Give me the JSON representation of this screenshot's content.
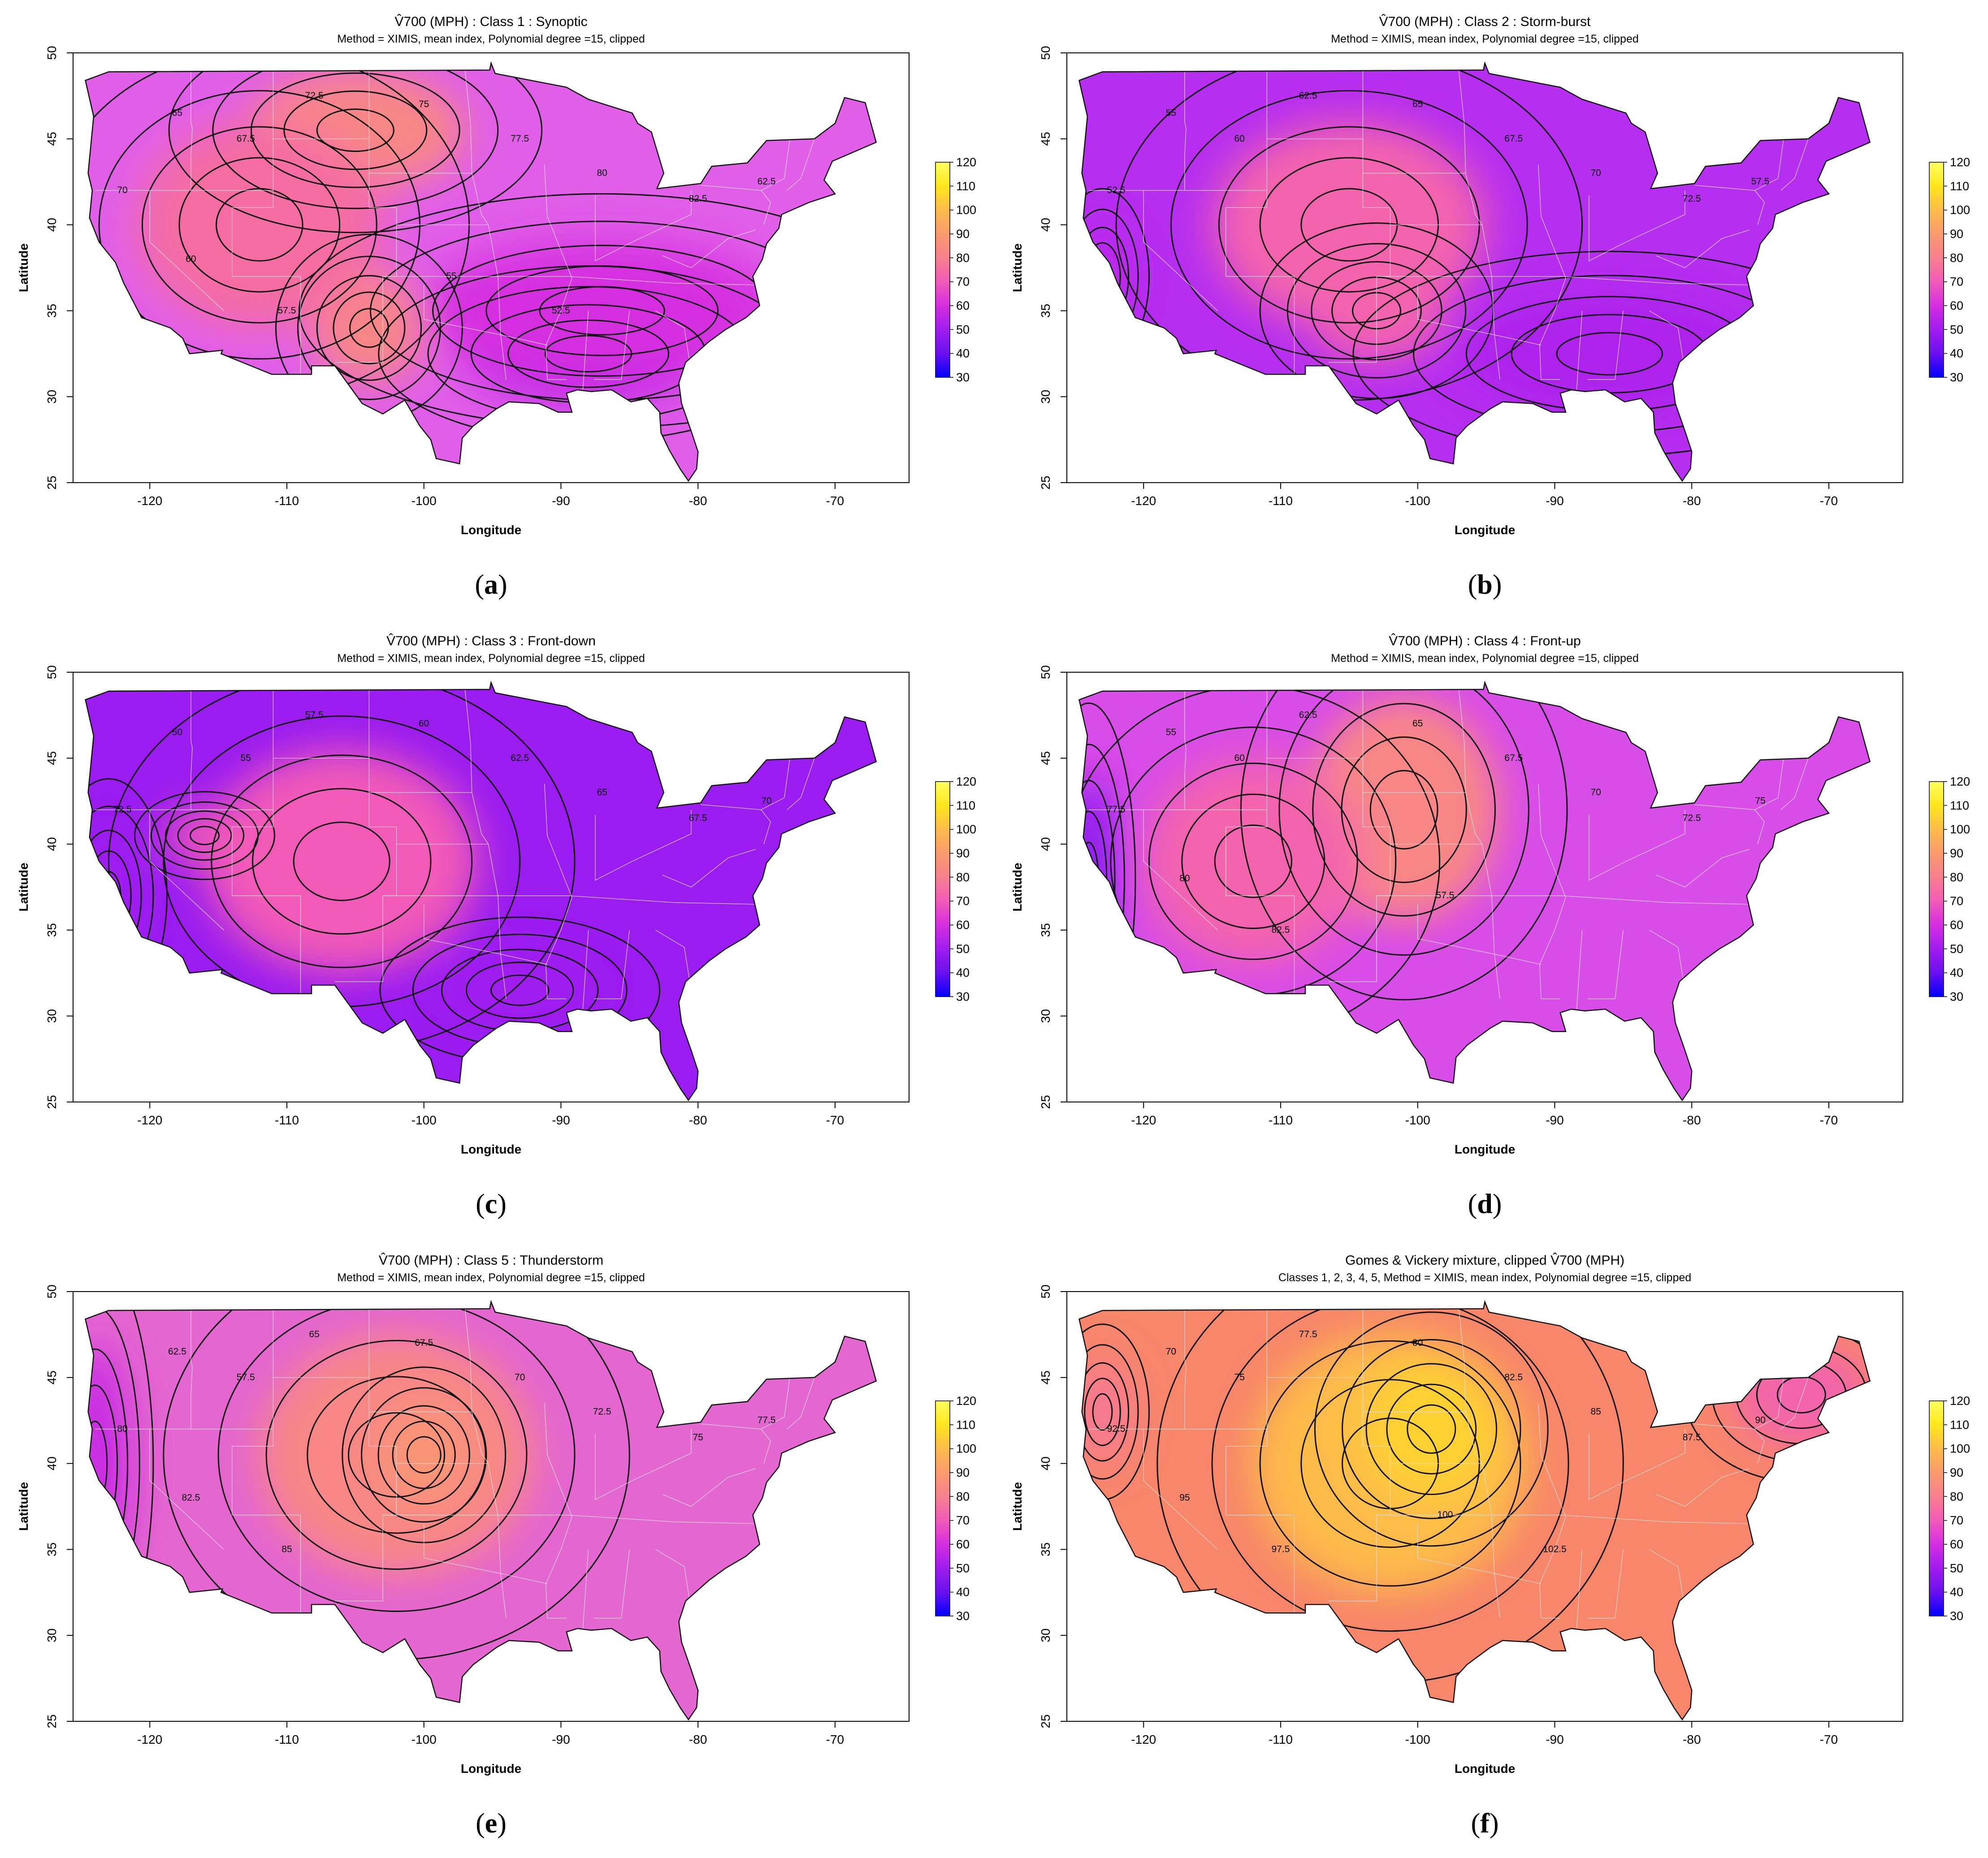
{
  "colorbar": {
    "ticks": [
      "120",
      "110",
      "100",
      "90",
      "80",
      "70",
      "60",
      "50",
      "40",
      "30"
    ],
    "range": [
      30,
      120
    ],
    "stops": [
      "#0000ff",
      "#6a10f0",
      "#a01cf0",
      "#d52ee0",
      "#f25ab8",
      "#f7808e",
      "#fa9a6e",
      "#fdbc4a",
      "#ffe61c",
      "#ffff60"
    ]
  },
  "axis": {
    "xlabel": "Longitude",
    "ylabel": "Latitude",
    "x_ticks": [
      "-120",
      "-110",
      "-100",
      "-90",
      "-80",
      "-70"
    ],
    "y_ticks": [
      "25",
      "30",
      "35",
      "40",
      "45",
      "50"
    ],
    "xlim": [
      -125.6,
      -64.6
    ],
    "ylim": [
      25,
      50
    ]
  },
  "chart_data": [
    {
      "type": "heatmap",
      "panel_label": "a",
      "title": "V̂700 (MPH) : Class 1 : Synoptic",
      "subtitle": "Method = XIMIS, mean index, Polynomial degree =15, clipped",
      "contour_labels": [
        "65",
        "67.5",
        "72.5",
        "75",
        "77.5",
        "80",
        "82.5",
        "62.5",
        "70",
        "60",
        "57.5",
        "55",
        "52.5"
      ],
      "fill_base": "#e05ee8",
      "regions": [
        {
          "x": -105,
          "y": 45.5,
          "rx": 8,
          "ry": 3.5,
          "value": 82.5
        },
        {
          "x": -104,
          "y": 34,
          "rx": 4,
          "ry": 3.2,
          "value": 82.5
        },
        {
          "x": -112,
          "y": 40,
          "rx": 9,
          "ry": 6,
          "value": 75
        },
        {
          "x": -88,
          "y": 32.5,
          "rx": 9,
          "ry": 3,
          "value": 55
        },
        {
          "x": -87,
          "y": 35,
          "rx": 13,
          "ry": 4,
          "value": 60
        }
      ]
    },
    {
      "type": "heatmap",
      "panel_label": "b",
      "title": "V̂700 (MPH) : Class 2 : Storm-burst",
      "subtitle": "Method = XIMIS, mean index, Polynomial degree =15, clipped",
      "contour_labels": [
        "55",
        "60",
        "62.5",
        "65",
        "67.5",
        "70",
        "72.5",
        "57.5",
        "52.5"
      ],
      "fill_base": "#b62ef0",
      "regions": [
        {
          "x": -105,
          "y": 40,
          "rx": 10,
          "ry": 6,
          "value": 72.5
        },
        {
          "x": -103,
          "y": 35,
          "rx": 5,
          "ry": 3,
          "value": 72.5
        },
        {
          "x": -86,
          "y": 32.5,
          "rx": 11,
          "ry": 3.5,
          "value": 52.5
        },
        {
          "x": -123,
          "y": 37,
          "rx": 2,
          "ry": 3,
          "value": 55
        }
      ]
    },
    {
      "type": "heatmap",
      "panel_label": "c",
      "title": "V̂700 (MPH) : Class 3 : Front-down",
      "subtitle": "Method = XIMIS, mean index, Polynomial degree =15, clipped",
      "contour_labels": [
        "50",
        "55",
        "57.5",
        "60",
        "62.5",
        "65",
        "67.5",
        "70",
        "72.5"
      ],
      "fill_base": "#9a1cf0",
      "regions": [
        {
          "x": -106,
          "y": 39,
          "rx": 10,
          "ry": 6.5,
          "value": 70
        },
        {
          "x": -116,
          "y": 40.5,
          "rx": 3,
          "ry": 1.5,
          "value": 70
        },
        {
          "x": -93,
          "y": 31.5,
          "rx": 6,
          "ry": 2.5,
          "value": 50
        },
        {
          "x": -123,
          "y": 37,
          "rx": 2.5,
          "ry": 4,
          "value": 50
        }
      ]
    },
    {
      "type": "heatmap",
      "panel_label": "d",
      "title": "V̂700 (MPH) : Class 4 : Front-up",
      "subtitle": "Method = XIMIS, mean index, Polynomial degree =15, clipped",
      "contour_labels": [
        "55",
        "60",
        "62.5",
        "65",
        "67.5",
        "70",
        "72.5",
        "75",
        "77.5",
        "80",
        "82.5",
        "57.5"
      ],
      "fill_base": "#d84ce8",
      "regions": [
        {
          "x": -101,
          "y": 42,
          "rx": 7,
          "ry": 6.5,
          "value": 82.5
        },
        {
          "x": -112,
          "y": 39,
          "rx": 8,
          "ry": 6,
          "value": 72.5
        },
        {
          "x": -124,
          "y": 38,
          "rx": 2,
          "ry": 6,
          "value": 45
        }
      ]
    },
    {
      "type": "heatmap",
      "panel_label": "e",
      "title": "V̂700 (MPH) : Class 5 : Thunderstorm",
      "subtitle": "Method = XIMIS, mean index, Polynomial degree =15, clipped",
      "contour_labels": [
        "62.5",
        "57.5",
        "65",
        "67.5",
        "70",
        "72.5",
        "75",
        "77.5",
        "80",
        "82.5",
        "85"
      ],
      "fill_base": "#e466d0",
      "regions": [
        {
          "x": -102,
          "y": 40.5,
          "rx": 10,
          "ry": 7,
          "value": 82.5
        },
        {
          "x": -100,
          "y": 40.5,
          "rx": 3.5,
          "ry": 3,
          "value": 87.5
        },
        {
          "x": -124,
          "y": 40,
          "rx": 2.5,
          "ry": 7,
          "value": 57.5
        }
      ]
    },
    {
      "type": "heatmap",
      "panel_label": "f",
      "title": "Gomes & Vickery mixture, clipped V̂700 (MPH)",
      "subtitle": "Classes 1, 2, 3, 4, 5, Method = XIMIS, mean index, Polynomial degree =15, clipped",
      "contour_labels": [
        "70",
        "75",
        "77.5",
        "80",
        "82.5",
        "85",
        "87.5",
        "90",
        "92.5",
        "95",
        "97.5",
        "100",
        "102.5"
      ],
      "fill_base": "#f7866a",
      "regions": [
        {
          "x": -102,
          "y": 40,
          "rx": 10,
          "ry": 7.5,
          "value": 100
        },
        {
          "x": -99,
          "y": 42,
          "rx": 5,
          "ry": 4,
          "value": 105
        },
        {
          "x": -72,
          "y": 44,
          "rx": 5,
          "ry": 3,
          "value": 72.5
        },
        {
          "x": -123,
          "y": 43,
          "rx": 2,
          "ry": 3,
          "value": 77.5
        }
      ]
    }
  ]
}
